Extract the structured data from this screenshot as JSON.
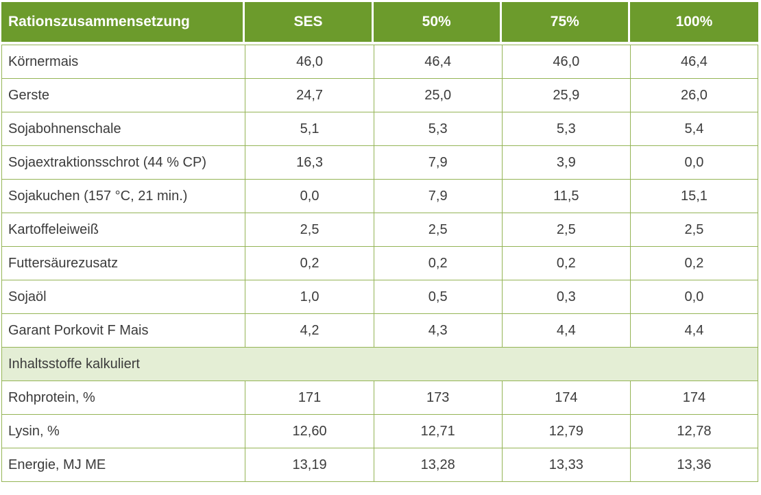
{
  "table": {
    "title": "Rationszusammensetzung",
    "columns": [
      "Rationszusammensetzung",
      "SES",
      "50%",
      "75%",
      "100%"
    ],
    "rows": [
      {
        "label": "Körnermais",
        "values": [
          "46,0",
          "46,4",
          "46,0",
          "46,4"
        ]
      },
      {
        "label": "Gerste",
        "values": [
          "24,7",
          "25,0",
          "25,9",
          "26,0"
        ]
      },
      {
        "label": "Sojabohnenschale",
        "values": [
          "5,1",
          "5,3",
          "5,3",
          "5,4"
        ]
      },
      {
        "label": "Sojaextraktionsschrot (44 % CP)",
        "values": [
          "16,3",
          "7,9",
          "3,9",
          "0,0"
        ]
      },
      {
        "label": "Sojakuchen (157 °C, 21 min.)",
        "values": [
          "0,0",
          "7,9",
          "11,5",
          "15,1"
        ]
      },
      {
        "label": "Kartoffeleiweiß",
        "values": [
          "2,5",
          "2,5",
          "2,5",
          "2,5"
        ]
      },
      {
        "label": "Futtersäurezusatz",
        "values": [
          "0,2",
          "0,2",
          "0,2",
          "0,2"
        ]
      },
      {
        "label": "Sojaöl",
        "values": [
          "1,0",
          "0,5",
          "0,3",
          "0,0"
        ]
      },
      {
        "label": "Garant Porkovit F Mais",
        "values": [
          "4,2",
          "4,3",
          "4,4",
          "4,4"
        ]
      }
    ],
    "section_header": "Inhaltsstoffe kalkuliert",
    "section_rows": [
      {
        "label": "Rohprotein, %",
        "values": [
          "171",
          "173",
          "174",
          "174"
        ]
      },
      {
        "label": "Lysin, %",
        "values": [
          "12,60",
          "12,71",
          "12,79",
          "12,78"
        ]
      },
      {
        "label": "Energie, MJ ME",
        "values": [
          "13,19",
          "13,28",
          "13,33",
          "13,36"
        ]
      }
    ],
    "colors": {
      "header_bg": "#6c9b2c",
      "header_text": "#ffffff",
      "border": "#94b455",
      "section_bg": "#e4eed5",
      "body_text": "#3b3b3b"
    }
  },
  "chart_data": {
    "type": "table",
    "title": "Rationszusammensetzung",
    "columns": [
      "Rationszusammensetzung",
      "SES",
      "50%",
      "75%",
      "100%"
    ],
    "rows": [
      [
        "Körnermais",
        "46,0",
        "46,4",
        "46,0",
        "46,4"
      ],
      [
        "Gerste",
        "24,7",
        "25,0",
        "25,9",
        "26,0"
      ],
      [
        "Sojabohnenschale",
        "5,1",
        "5,3",
        "5,3",
        "5,4"
      ],
      [
        "Sojaextraktionsschrot (44 % CP)",
        "16,3",
        "7,9",
        "3,9",
        "0,0"
      ],
      [
        "Sojakuchen (157 °C, 21 min.)",
        "0,0",
        "7,9",
        "11,5",
        "15,1"
      ],
      [
        "Kartoffeleiweiß",
        "2,5",
        "2,5",
        "2,5",
        "2,5"
      ],
      [
        "Futtersäurezusatz",
        "0,2",
        "0,2",
        "0,2",
        "0,2"
      ],
      [
        "Sojaöl",
        "1,0",
        "0,5",
        "0,3",
        "0,0"
      ],
      [
        "Garant Porkovit F Mais",
        "4,2",
        "4,3",
        "4,4",
        "4,4"
      ],
      [
        "Inhaltsstoffe kalkuliert",
        "",
        "",
        "",
        ""
      ],
      [
        "Rohprotein, %",
        "171",
        "173",
        "174",
        "174"
      ],
      [
        "Lysin, %",
        "12,60",
        "12,71",
        "12,79",
        "12,78"
      ],
      [
        "Energie, MJ ME",
        "13,19",
        "13,28",
        "13,33",
        "13,36"
      ]
    ],
    "section_break_row": "Inhaltsstoffe kalkuliert",
    "layout": {
      "header_bg": "#6c9b2c",
      "section_bg": "#e4eed5",
      "grid": "on"
    }
  }
}
